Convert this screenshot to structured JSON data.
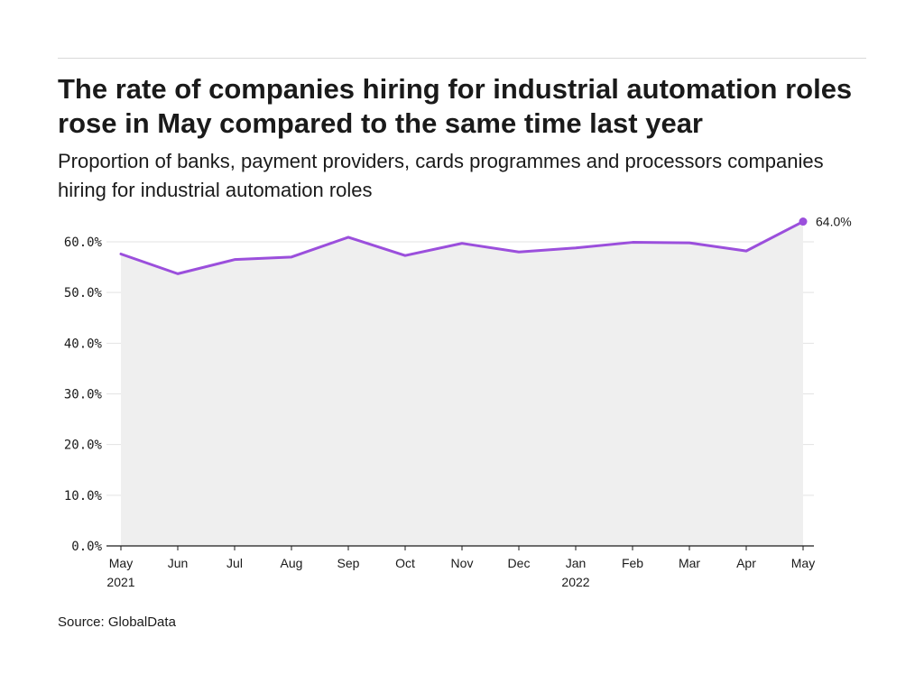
{
  "header": {
    "title": "The rate of companies hiring for industrial automation roles rose in May compared to the same time last year",
    "subtitle": "Proportion of banks, payment providers, cards programmes and processors companies hiring for industrial automation roles"
  },
  "footer": {
    "source": "Source: GlobalData"
  },
  "colors": {
    "line": "#9b4fdc",
    "area": "#efefef",
    "grid": "#e3e3e3",
    "axis": "#1a1a1a"
  },
  "chart_data": {
    "type": "area",
    "title": "The rate of companies hiring for industrial automation roles rose in May compared to the same time last year",
    "subtitle": "Proportion of banks, payment providers, cards programmes and processors companies hiring for industrial automation roles",
    "xlabel": "",
    "ylabel": "",
    "x": [
      "May 2021",
      "Jun 2021",
      "Jul 2021",
      "Aug 2021",
      "Sep 2021",
      "Oct 2021",
      "Nov 2021",
      "Dec 2021",
      "Jan 2022",
      "Feb 2022",
      "Mar 2022",
      "Apr 2022",
      "May 2022"
    ],
    "x_tick_labels": [
      {
        "month": "May",
        "year": "2021"
      },
      {
        "month": "Jun",
        "year": ""
      },
      {
        "month": "Jul",
        "year": ""
      },
      {
        "month": "Aug",
        "year": ""
      },
      {
        "month": "Sep",
        "year": ""
      },
      {
        "month": "Oct",
        "year": ""
      },
      {
        "month": "Nov",
        "year": ""
      },
      {
        "month": "Dec",
        "year": ""
      },
      {
        "month": "Jan",
        "year": "2022"
      },
      {
        "month": "Feb",
        "year": ""
      },
      {
        "month": "Mar",
        "year": ""
      },
      {
        "month": "Apr",
        "year": ""
      },
      {
        "month": "May",
        "year": ""
      }
    ],
    "series": [
      {
        "values": [
          57.6,
          53.7,
          56.5,
          57.0,
          60.9,
          57.3,
          59.7,
          58.0,
          58.8,
          59.9,
          59.8,
          58.2,
          64.0
        ]
      }
    ],
    "y_ticks": [
      0,
      10,
      20,
      30,
      40,
      50,
      60
    ],
    "y_tick_labels": [
      "0.0%",
      "10.0%",
      "20.0%",
      "30.0%",
      "40.0%",
      "50.0%",
      "60.0%"
    ],
    "ylim": [
      0,
      64
    ],
    "grid": true,
    "legend": "none",
    "annotations": [
      {
        "index": 12,
        "text": "64.0%"
      }
    ]
  }
}
